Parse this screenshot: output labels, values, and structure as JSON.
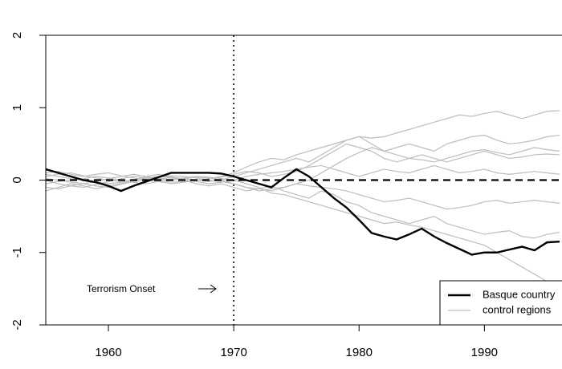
{
  "chart_data": {
    "type": "line",
    "x": [
      1955,
      1956,
      1957,
      1958,
      1959,
      1960,
      1961,
      1962,
      1963,
      1964,
      1965,
      1966,
      1967,
      1968,
      1969,
      1970,
      1971,
      1972,
      1973,
      1974,
      1975,
      1976,
      1977,
      1978,
      1979,
      1980,
      1981,
      1982,
      1983,
      1984,
      1985,
      1986,
      1987,
      1988,
      1989,
      1990,
      1991,
      1992,
      1993,
      1994,
      1995,
      1996
    ],
    "series": [
      {
        "name": "Basque country",
        "color": "#000000",
        "values": [
          0.15,
          0.1,
          0.05,
          0.0,
          -0.03,
          -0.08,
          -0.15,
          -0.08,
          -0.02,
          0.04,
          0.1,
          0.1,
          0.1,
          0.1,
          0.09,
          0.05,
          0.0,
          -0.05,
          -0.1,
          0.03,
          0.15,
          0.05,
          -0.1,
          -0.25,
          -0.38,
          -0.55,
          -0.73,
          -0.78,
          -0.82,
          -0.75,
          -0.67,
          -0.78,
          -0.87,
          -0.95,
          -1.03,
          -1.0,
          -1.0,
          -0.96,
          -0.92,
          -0.97,
          -0.86,
          -0.85
        ]
      }
    ],
    "controls": {
      "name": "control regions",
      "color": "#bdbdbd",
      "lines": [
        [
          0,
          -0.05,
          -0.08,
          -0.1,
          -0.06,
          -0.02,
          0.02,
          0.05,
          0.03,
          0,
          -0.03,
          -0.02,
          0,
          0.02,
          0.05,
          0.1,
          0.18,
          0.25,
          0.3,
          0.28,
          0.35,
          0.4,
          0.45,
          0.5,
          0.55,
          0.6,
          0.58,
          0.6,
          0.65,
          0.7,
          0.75,
          0.8,
          0.85,
          0.9,
          0.88,
          0.92,
          0.95,
          0.9,
          0.85,
          0.9,
          0.95,
          0.96
        ],
        [
          0.05,
          0.08,
          0.1,
          0.06,
          0.03,
          0,
          -0.02,
          0,
          0.03,
          0.05,
          0.04,
          0.02,
          0,
          -0.02,
          0,
          0.05,
          0.1,
          0.15,
          0.2,
          0.25,
          0.3,
          0.25,
          0.35,
          0.45,
          0.55,
          0.6,
          0.5,
          0.4,
          0.45,
          0.5,
          0.45,
          0.4,
          0.5,
          0.55,
          0.6,
          0.62,
          0.55,
          0.5,
          0.52,
          0.55,
          0.6,
          0.62
        ],
        [
          -0.1,
          -0.12,
          -0.08,
          -0.05,
          -0.02,
          0.02,
          0.05,
          0.08,
          0.05,
          0.02,
          0,
          0.02,
          0.04,
          0.03,
          0,
          -0.05,
          -0.1,
          -0.15,
          -0.12,
          -0.1,
          -0.05,
          0,
          0.1,
          0.2,
          0.3,
          0.38,
          0.45,
          0.4,
          0.35,
          0.3,
          0.28,
          0.25,
          0.3,
          0.35,
          0.4,
          0.42,
          0.38,
          0.35,
          0.4,
          0.45,
          0.42,
          0.4
        ],
        [
          0.08,
          0.05,
          0.02,
          0,
          -0.03,
          -0.05,
          -0.03,
          0,
          0.02,
          0.04,
          0.06,
          0.05,
          0.03,
          0,
          -0.02,
          -0.05,
          -0.1,
          -0.12,
          -0.15,
          -0.1,
          -0.05,
          -0.08,
          -0.1,
          -0.12,
          -0.15,
          -0.2,
          -0.25,
          -0.3,
          -0.28,
          -0.25,
          -0.3,
          -0.35,
          -0.4,
          -0.38,
          -0.35,
          -0.3,
          -0.28,
          -0.32,
          -0.3,
          -0.28,
          -0.3,
          -0.32
        ],
        [
          -0.05,
          -0.02,
          0,
          0.02,
          0.05,
          0.03,
          0,
          -0.03,
          -0.05,
          -0.02,
          0,
          0.03,
          0.05,
          0.04,
          0.02,
          0,
          -0.05,
          -0.1,
          -0.18,
          -0.2,
          -0.25,
          -0.3,
          -0.35,
          -0.4,
          -0.45,
          -0.5,
          -0.55,
          -0.6,
          -0.58,
          -0.62,
          -0.65,
          -0.7,
          -0.75,
          -0.8,
          -0.85,
          -0.9,
          -1.0,
          -1.1,
          -1.2,
          -1.3,
          -1.4,
          -1.45
        ],
        [
          0.02,
          0,
          -0.03,
          -0.05,
          -0.08,
          -0.1,
          -0.06,
          -0.02,
          0,
          0.02,
          0.03,
          0,
          -0.02,
          -0.05,
          -0.03,
          0,
          0.05,
          0.08,
          0.1,
          0.12,
          0.15,
          0.18,
          0.2,
          0.15,
          0.1,
          0.05,
          0.1,
          0.15,
          0.12,
          0.1,
          0.15,
          0.2,
          0.15,
          0.1,
          0.12,
          0.15,
          0.1,
          0.08,
          0.1,
          0.12,
          0.1,
          0.08
        ],
        [
          -0.15,
          -0.1,
          -0.05,
          -0.08,
          -0.12,
          -0.08,
          -0.05,
          0,
          0.05,
          0.08,
          0.05,
          0,
          -0.05,
          -0.08,
          -0.05,
          -0.1,
          -0.15,
          -0.12,
          -0.08,
          -0.15,
          -0.2,
          -0.25,
          -0.15,
          -0.2,
          -0.3,
          -0.35,
          -0.45,
          -0.5,
          -0.55,
          -0.6,
          -0.55,
          -0.5,
          -0.6,
          -0.65,
          -0.7,
          -0.75,
          -0.72,
          -0.7,
          -0.78,
          -0.8,
          -0.75,
          -0.72
        ],
        [
          0.1,
          0.12,
          0.08,
          0.05,
          0.08,
          0.1,
          0.06,
          0.03,
          0,
          -0.02,
          -0.05,
          -0.03,
          0,
          0.02,
          0.04,
          0.08,
          0.12,
          0.1,
          0.05,
          0.08,
          0.12,
          0.2,
          0.3,
          0.4,
          0.5,
          0.45,
          0.4,
          0.3,
          0.25,
          0.3,
          0.35,
          0.3,
          0.25,
          0.3,
          0.35,
          0.4,
          0.35,
          0.3,
          0.32,
          0.35,
          0.36,
          0.35
        ]
      ]
    },
    "hline": 0,
    "vline": 1970,
    "annotation": "Terrorism Onset",
    "xlim": [
      1955,
      1996
    ],
    "xticks": [
      1960,
      1970,
      1980,
      1990
    ],
    "ylim": [
      -2,
      2
    ],
    "yticks": [
      -2,
      -1,
      0,
      1,
      2
    ],
    "legend": "bottomright"
  }
}
